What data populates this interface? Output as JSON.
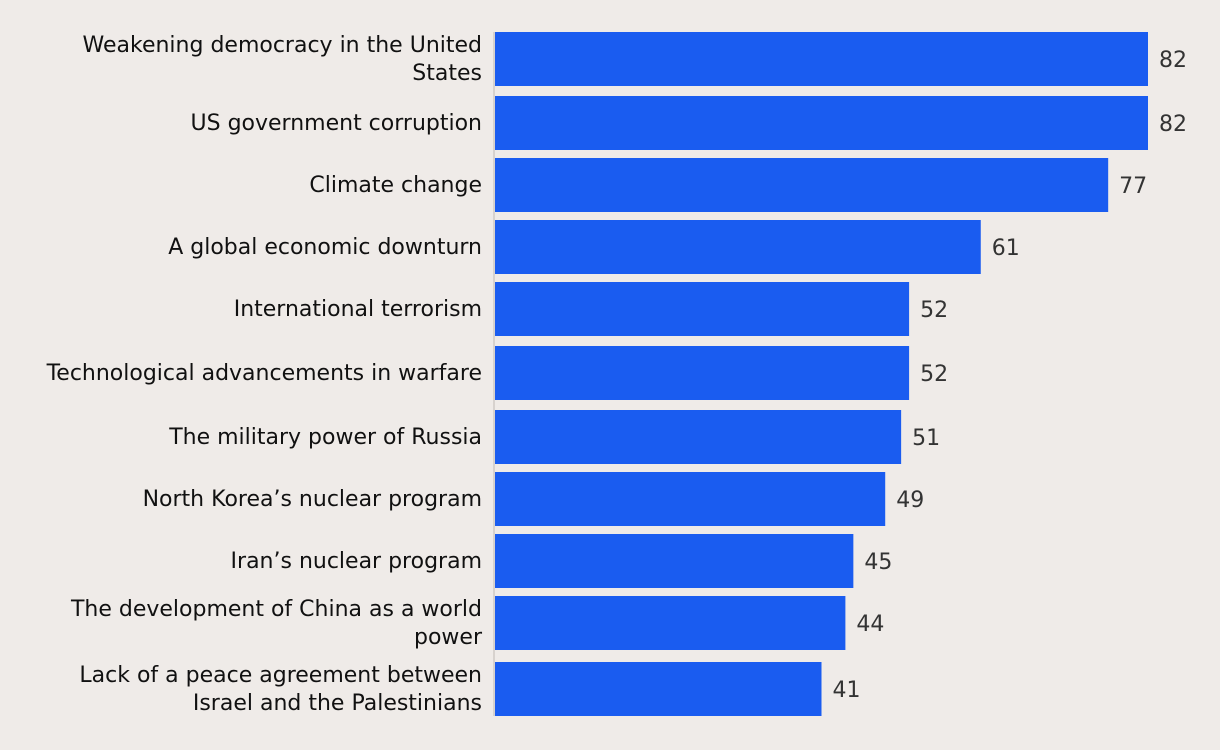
{
  "chart_data": {
    "type": "bar",
    "orientation": "horizontal",
    "title": "",
    "xlabel": "",
    "ylabel": "",
    "xlim": [
      0,
      82
    ],
    "grid": false,
    "legend": "none",
    "bar_color": "#1a5cf0",
    "categories": [
      "Weakening democracy in the United States",
      "US government corruption",
      "Climate change",
      "A global economic downturn",
      "International terrorism",
      "Technological advancements in warfare",
      "The military power of Russia",
      "North Korea’s nuclear program",
      "Iran’s nuclear program",
      "The development of China as a world power",
      "Lack of a peace agreement between Israel and the Palestinians"
    ],
    "values": [
      82,
      82,
      77,
      61,
      52,
      52,
      51,
      49,
      45,
      44,
      41
    ]
  }
}
